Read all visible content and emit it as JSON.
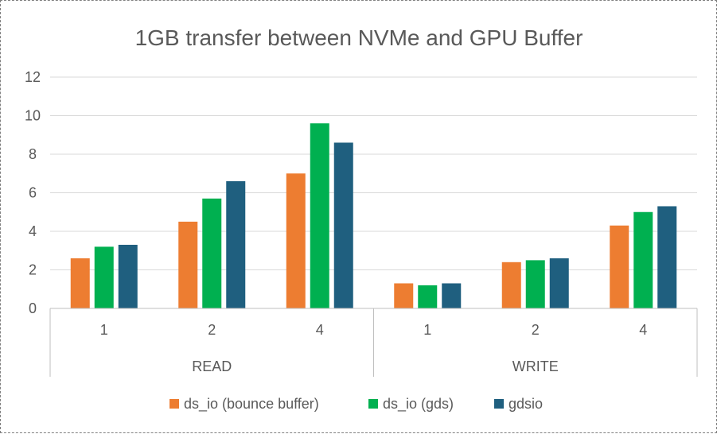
{
  "chart_data": {
    "type": "bar",
    "title": "1GB transfer between NVMe and GPU Buffer",
    "groups": [
      {
        "label": "READ",
        "categories": [
          "1",
          "2",
          "4"
        ]
      },
      {
        "label": "WRITE",
        "categories": [
          "1",
          "2",
          "4"
        ]
      }
    ],
    "series": [
      {
        "name": "ds_io (bounce buffer)",
        "color": "#ED7D31",
        "values": [
          2.6,
          4.5,
          7.0,
          1.3,
          2.4,
          4.3
        ]
      },
      {
        "name": "ds_io (gds)",
        "color": "#00B050",
        "values": [
          3.2,
          5.7,
          9.6,
          1.2,
          2.5,
          5.0
        ]
      },
      {
        "name": "gdsio",
        "color": "#1F5F7F",
        "values": [
          3.3,
          6.6,
          8.6,
          1.3,
          2.6,
          5.3
        ]
      }
    ],
    "ylim": [
      0,
      12
    ],
    "yticks": [
      "0",
      "2",
      "4",
      "6",
      "8",
      "10",
      "12"
    ],
    "grid": true,
    "legend_position": "bottom"
  }
}
